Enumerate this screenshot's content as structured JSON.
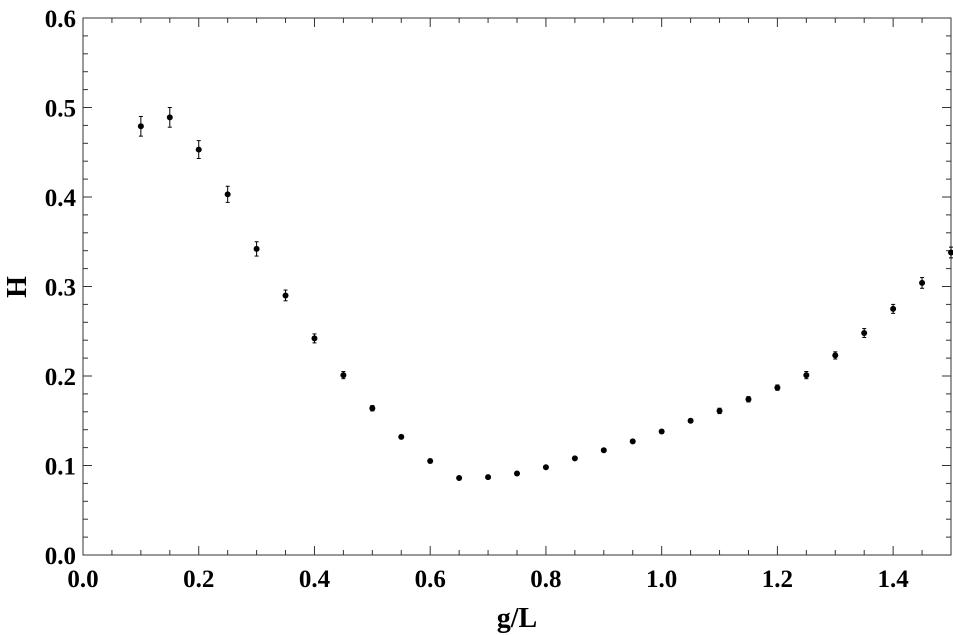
{
  "chart_data": {
    "type": "scatter",
    "xlabel": "g/L",
    "ylabel": "H",
    "xlim": [
      0.0,
      1.5
    ],
    "ylim": [
      0.0,
      0.6
    ],
    "grid": false,
    "legend": "none",
    "x_ticks": [
      "0.0",
      "0.2",
      "0.4",
      "0.6",
      "0.8",
      "1.0",
      "1.2",
      "1.4"
    ],
    "y_ticks": [
      "0.0",
      "0.1",
      "0.2",
      "0.3",
      "0.4",
      "0.5",
      "0.6"
    ],
    "x_tick_values": [
      0.0,
      0.2,
      0.4,
      0.6,
      0.8,
      1.0,
      1.2,
      1.4
    ],
    "y_tick_values": [
      0.0,
      0.1,
      0.2,
      0.3,
      0.4,
      0.5,
      0.6
    ],
    "marker_color": "#000000",
    "points": [
      {
        "x": 0.1,
        "y": 0.479,
        "err": 0.011
      },
      {
        "x": 0.15,
        "y": 0.489,
        "err": 0.011
      },
      {
        "x": 0.2,
        "y": 0.453,
        "err": 0.01
      },
      {
        "x": 0.25,
        "y": 0.403,
        "err": 0.009
      },
      {
        "x": 0.3,
        "y": 0.342,
        "err": 0.008
      },
      {
        "x": 0.35,
        "y": 0.29,
        "err": 0.006
      },
      {
        "x": 0.4,
        "y": 0.242,
        "err": 0.005
      },
      {
        "x": 0.45,
        "y": 0.201,
        "err": 0.004
      },
      {
        "x": 0.5,
        "y": 0.164,
        "err": 0.003
      },
      {
        "x": 0.55,
        "y": 0.132,
        "err": 0.002
      },
      {
        "x": 0.6,
        "y": 0.105,
        "err": 0.002
      },
      {
        "x": 0.65,
        "y": 0.086,
        "err": 0.001
      },
      {
        "x": 0.7,
        "y": 0.087,
        "err": 0.001
      },
      {
        "x": 0.75,
        "y": 0.091,
        "err": 0.001
      },
      {
        "x": 0.8,
        "y": 0.098,
        "err": 0.001
      },
      {
        "x": 0.85,
        "y": 0.108,
        "err": 0.001
      },
      {
        "x": 0.9,
        "y": 0.117,
        "err": 0.002
      },
      {
        "x": 0.95,
        "y": 0.127,
        "err": 0.002
      },
      {
        "x": 1.0,
        "y": 0.138,
        "err": 0.002
      },
      {
        "x": 1.05,
        "y": 0.15,
        "err": 0.002
      },
      {
        "x": 1.1,
        "y": 0.161,
        "err": 0.003
      },
      {
        "x": 1.15,
        "y": 0.174,
        "err": 0.003
      },
      {
        "x": 1.2,
        "y": 0.187,
        "err": 0.003
      },
      {
        "x": 1.25,
        "y": 0.201,
        "err": 0.004
      },
      {
        "x": 1.3,
        "y": 0.223,
        "err": 0.004
      },
      {
        "x": 1.35,
        "y": 0.248,
        "err": 0.005
      },
      {
        "x": 1.4,
        "y": 0.275,
        "err": 0.005
      },
      {
        "x": 1.45,
        "y": 0.304,
        "err": 0.006
      },
      {
        "x": 1.5,
        "y": 0.338,
        "err": 0.006
      }
    ]
  }
}
